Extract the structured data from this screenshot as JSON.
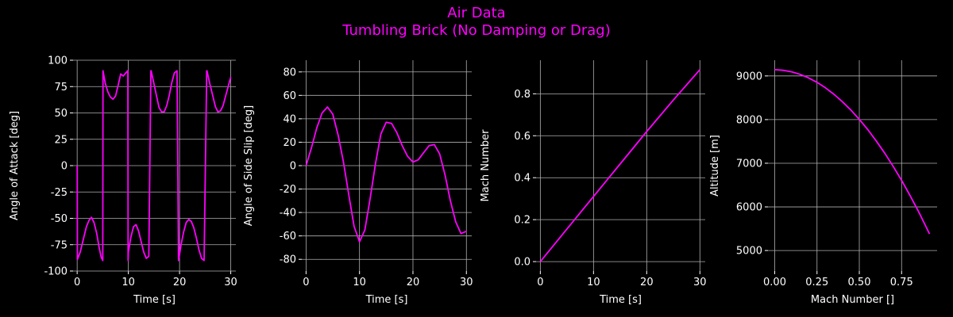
{
  "figure": {
    "title_line1": "Air Data",
    "title_line2": "Tumbling Brick (No Damping or Drag)",
    "background": "#000000",
    "line_color": "#ff00ff",
    "text_color": "#ffffff",
    "grid_color": "#b0b0b0"
  },
  "chart_data": [
    {
      "type": "line",
      "xlabel": "Time [s]",
      "ylabel": "Angle of Attack [deg]",
      "xlim": [
        -0.8,
        31
      ],
      "ylim": [
        -100,
        100
      ],
      "xticks": [
        0,
        10,
        20,
        30
      ],
      "yticks": [
        -100,
        -75,
        -50,
        -25,
        0,
        25,
        50,
        75,
        100
      ],
      "grid": true,
      "series": [
        {
          "x": [
            0,
            0.05,
            0.6,
            1.2,
            1.8,
            2.3,
            2.8,
            3.3,
            3.8,
            4.3,
            4.7,
            5.0,
            5.05,
            5.5,
            6.0,
            6.5,
            7.0,
            7.5,
            8.0,
            8.5,
            9.0,
            9.5,
            9.9,
            9.95,
            10.0,
            10.5,
            11.0,
            11.5,
            12.0,
            12.5,
            13.0,
            13.5,
            14.0,
            14.4,
            14.45,
            14.9,
            15.5,
            16.0,
            16.5,
            17.0,
            17.5,
            18.0,
            18.5,
            19.0,
            19.5,
            19.8,
            19.85,
            20.3,
            20.8,
            21.3,
            21.8,
            22.3,
            22.8,
            23.3,
            23.8,
            24.3,
            24.8,
            25.3,
            25.35,
            25.9,
            26.5,
            27.0,
            27.5,
            28.0,
            28.5,
            29.0,
            29.5,
            30.0
          ],
          "y": [
            0,
            -89,
            -82,
            -70,
            -58,
            -52,
            -49,
            -54,
            -64,
            -78,
            -87,
            -90,
            90,
            78,
            70,
            65,
            63,
            66,
            76,
            87,
            85,
            88,
            90,
            -90,
            -82,
            -68,
            -58,
            -56,
            -62,
            -72,
            -82,
            -88,
            -86,
            90,
            90,
            80,
            66,
            55,
            51,
            51,
            57,
            67,
            79,
            88,
            90,
            -90,
            -89,
            -75,
            -63,
            -54,
            -51,
            -53,
            -59,
            -69,
            -80,
            -88,
            -90,
            90,
            90,
            78,
            66,
            56,
            51,
            52,
            57,
            66,
            75,
            84
          ]
        }
      ]
    },
    {
      "type": "line",
      "xlabel": "Time [s]",
      "ylabel": "Angle of Side Slip [deg]",
      "xlim": [
        -0.8,
        31
      ],
      "ylim": [
        -90,
        90
      ],
      "xticks": [
        0,
        10,
        20,
        30
      ],
      "yticks": [
        -80,
        -60,
        -40,
        -20,
        0,
        20,
        40,
        60,
        80
      ],
      "grid": true,
      "series": [
        {
          "x": [
            0,
            1,
            2,
            3,
            4,
            5,
            6,
            7,
            8,
            9,
            10,
            11,
            12,
            13,
            14,
            15,
            16,
            17,
            18,
            19,
            20,
            21,
            22,
            23,
            24,
            25,
            26,
            27,
            28,
            29,
            30
          ],
          "y": [
            0,
            15,
            32,
            45,
            50,
            44,
            26,
            3,
            -25,
            -52,
            -65,
            -55,
            -28,
            2,
            27,
            37,
            36,
            28,
            17,
            8,
            3,
            5,
            11,
            17,
            18,
            10,
            -8,
            -30,
            -48,
            -58,
            -56
          ]
        }
      ]
    },
    {
      "type": "line",
      "xlabel": "Time [s]",
      "ylabel": "Mach Number",
      "xlim": [
        -0.8,
        31
      ],
      "ylim": [
        -0.045,
        0.96
      ],
      "xticks": [
        0,
        10,
        20,
        30
      ],
      "yticks": [
        0.0,
        0.2,
        0.4,
        0.6,
        0.8
      ],
      "grid": true,
      "series": [
        {
          "x": [
            0,
            5,
            10,
            15,
            20,
            25,
            30
          ],
          "y": [
            0.0,
            0.155,
            0.31,
            0.465,
            0.62,
            0.77,
            0.915
          ]
        }
      ]
    },
    {
      "type": "line",
      "xlabel": "Mach Number []",
      "ylabel": "Altitude [m]",
      "xlim": [
        -0.04,
        0.96
      ],
      "ylim": [
        4530,
        9360
      ],
      "xticks": [
        0.0,
        0.25,
        0.5,
        0.75
      ],
      "yticks": [
        5000,
        6000,
        7000,
        8000,
        9000
      ],
      "grid": true,
      "series": [
        {
          "x": [
            0.0,
            0.05,
            0.1,
            0.15,
            0.2,
            0.25,
            0.3,
            0.35,
            0.4,
            0.45,
            0.5,
            0.55,
            0.6,
            0.65,
            0.7,
            0.75,
            0.8,
            0.85,
            0.9,
            0.915
          ],
          "y": [
            9144,
            9130,
            9094,
            9036,
            8955,
            8853,
            8728,
            8580,
            8411,
            8220,
            8006,
            7771,
            7512,
            7232,
            6931,
            6607,
            6260,
            5893,
            5502,
            5380
          ]
        }
      ]
    }
  ]
}
